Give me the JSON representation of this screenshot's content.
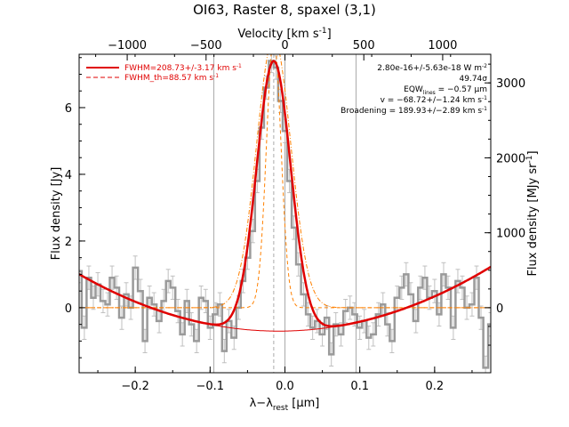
{
  "chart_data": {
    "type": "line",
    "title": "OI63, Raster 8, spaxel (3,1)",
    "xlabel": "λ−λ",
    "xlabel_sub": "rest",
    "xlabel_unit": " [μm]",
    "ylabel": "Flux density [Jy]",
    "top_axis_label": "Velocity [km s",
    "top_axis_label_sup": "-1",
    "top_axis_label_end": "]",
    "right_axis_label": "Flux density [MJy sr",
    "right_axis_label_sup": "-1",
    "right_axis_label_end": "]",
    "xlim": [
      -0.275,
      0.275
    ],
    "ylim": [
      -1.95,
      7.6
    ],
    "x_ticks": [
      -0.2,
      -0.1,
      0.0,
      0.1,
      0.2
    ],
    "x_tick_labels": [
      "−0.2",
      "−0.1",
      "0.0",
      "0.1",
      "0.2"
    ],
    "y_ticks": [
      0,
      2,
      4,
      6
    ],
    "y_tick_labels": [
      "0",
      "2",
      "4",
      "6"
    ],
    "top_ticks_kms": [
      -1000,
      -500,
      0,
      500,
      1000
    ],
    "top_tick_labels": [
      "−1000",
      "−500",
      "0",
      "500",
      "1000"
    ],
    "right_ticks_mjysr": [
      0,
      1000,
      2000,
      3000
    ],
    "right_tick_labels": [
      "0",
      "1000",
      "2000",
      "3000"
    ],
    "vertical_lines_x": [
      -0.095,
      0.0,
      0.095
    ],
    "line_center_x": -0.015,
    "legend": [
      {
        "label": "FWHM=208.73+/-3.17 km s",
        "sup": "-1",
        "style": "solid",
        "color": "#e00000"
      },
      {
        "label": "FWHM_th=88.57 km s",
        "sup": "-1",
        "style": "dashed",
        "color": "#e00000"
      }
    ],
    "annotations": [
      {
        "text": "2.80e-16+/-5.63e-18 W m",
        "sup": "-2"
      },
      {
        "text": "49.74σ",
        "sup": ""
      },
      {
        "text": "EQW",
        "sub": "lines",
        "text2": " = −0.57 μm",
        "sup": ""
      },
      {
        "text": "v = −68.72+/−1.24 km s",
        "sup": "-1"
      },
      {
        "text": "Broadening = 189.93+/−2.89 km s",
        "sup": "-1"
      }
    ],
    "series": [
      {
        "name": "Observed spectrum",
        "color": "#9a9a9a",
        "x": [
          -0.275,
          -0.268,
          -0.262,
          -0.256,
          -0.25,
          -0.243,
          -0.237,
          -0.231,
          -0.225,
          -0.218,
          -0.212,
          -0.206,
          -0.2,
          -0.193,
          -0.187,
          -0.181,
          -0.175,
          -0.168,
          -0.162,
          -0.156,
          -0.15,
          -0.143,
          -0.137,
          -0.131,
          -0.125,
          -0.118,
          -0.112,
          -0.106,
          -0.1,
          -0.093,
          -0.087,
          -0.081,
          -0.075,
          -0.068,
          -0.062,
          -0.056,
          -0.05,
          -0.043,
          -0.037,
          -0.031,
          -0.025,
          -0.018,
          -0.012,
          -0.006,
          0.0,
          0.006,
          0.012,
          0.018,
          0.025,
          0.031,
          0.037,
          0.043,
          0.05,
          0.056,
          0.062,
          0.068,
          0.075,
          0.081,
          0.087,
          0.093,
          0.1,
          0.106,
          0.112,
          0.118,
          0.125,
          0.131,
          0.137,
          0.143,
          0.15,
          0.156,
          0.162,
          0.168,
          0.175,
          0.181,
          0.187,
          0.193,
          0.2,
          0.206,
          0.212,
          0.218,
          0.225,
          0.231,
          0.237,
          0.243,
          0.25,
          0.256,
          0.262,
          0.268,
          0.275
        ],
        "y": [
          1.1,
          -0.6,
          0.9,
          0.3,
          0.7,
          0.2,
          0.1,
          0.9,
          0.6,
          -0.3,
          0.4,
          0.0,
          1.2,
          0.5,
          -1.0,
          0.3,
          0.1,
          -0.4,
          0.2,
          0.8,
          0.6,
          -0.1,
          -0.8,
          0.2,
          -0.5,
          -1.0,
          0.3,
          0.2,
          -0.6,
          -0.2,
          0.1,
          -1.3,
          -0.4,
          -0.9,
          0.0,
          0.8,
          1.5,
          2.3,
          3.8,
          5.4,
          6.6,
          7.4,
          7.2,
          6.2,
          5.3,
          3.8,
          2.4,
          1.3,
          0.4,
          -0.2,
          -0.6,
          -0.4,
          -0.8,
          -0.3,
          -1.4,
          -0.5,
          -0.8,
          -0.1,
          0.0,
          -0.2,
          -0.6,
          -0.4,
          -0.9,
          -0.8,
          -0.2,
          0.1,
          -0.5,
          -1.0,
          0.3,
          0.6,
          1.0,
          0.4,
          -0.4,
          0.6,
          0.9,
          0.3,
          0.5,
          -0.2,
          1.0,
          0.6,
          -0.6,
          0.8,
          0.6,
          0.0,
          0.1,
          0.9,
          -0.3,
          -1.8,
          -0.5
        ],
        "errors": [
          0.35,
          0.35,
          0.35,
          0.35,
          0.35,
          0.35,
          0.35,
          0.35,
          0.35,
          0.35,
          0.35,
          0.35,
          0.35,
          0.35,
          0.35,
          0.35,
          0.35,
          0.35,
          0.35,
          0.35,
          0.35,
          0.35,
          0.35,
          0.35,
          0.35,
          0.35,
          0.35,
          0.35,
          0.35,
          0.35,
          0.35,
          0.35,
          0.35,
          0.35,
          0.35,
          0.35,
          0.35,
          0.35,
          0.35,
          0.35,
          0.35,
          0.35,
          0.35,
          0.35,
          0.35,
          0.35,
          0.35,
          0.35,
          0.35,
          0.35,
          0.35,
          0.35,
          0.35,
          0.35,
          0.35,
          0.35,
          0.35,
          0.35,
          0.35,
          0.35,
          0.35,
          0.35,
          0.35,
          0.35,
          0.35,
          0.35,
          0.35,
          0.35,
          0.35,
          0.35,
          0.35,
          0.35,
          0.35,
          0.35,
          0.35,
          0.35,
          0.35,
          0.35,
          0.35,
          0.35,
          0.35,
          0.35,
          0.35,
          0.35,
          0.35,
          0.35,
          0.35,
          0.35,
          0.35
        ]
      },
      {
        "name": "Total fit",
        "color": "#e00000",
        "model": {
          "amplitude": 8.1,
          "center": -0.015,
          "sigma": 0.0228,
          "baseline_coeffs": [
            -0.7,
            0.4,
            24.0
          ]
        }
      },
      {
        "name": "Gaussian component",
        "color": "#ff8000",
        "model": {
          "amplitude": 8.1,
          "center": -0.015,
          "sigma": 0.0228
        }
      },
      {
        "name": "Thermal component",
        "color": "#ff8000",
        "model": {
          "amplitude": 8.1,
          "center": -0.015,
          "sigma": 0.0097
        }
      },
      {
        "name": "Baseline",
        "color": "#e00000",
        "model": {
          "baseline_coeffs": [
            -0.7,
            0.4,
            24.0
          ]
        }
      }
    ]
  }
}
